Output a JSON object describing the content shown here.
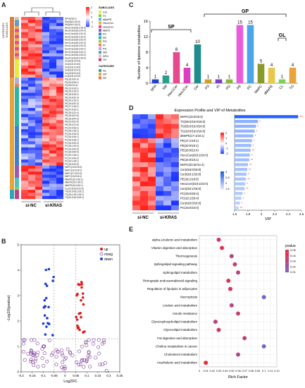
{
  "panels": {
    "A": {
      "letter": "A",
      "category_title": "CATEGORY",
      "subclass_title": "SUBCLASS",
      "col_groups": [
        "si-NC",
        "si-KRAS"
      ],
      "color_scale": [
        "2",
        "1",
        "0",
        "-1",
        "-2"
      ],
      "subclass_legend": [
        {
          "label": "Cer",
          "color": "#e8eb3a"
        },
        {
          "label": "CL",
          "color": "#7ad15a"
        },
        {
          "label": "dMePE",
          "color": "#4fc0c4"
        },
        {
          "label": "Hex1Cer",
          "color": "#f5a54a"
        },
        {
          "label": "Hex2Cer",
          "color": "#e54a8f"
        },
        {
          "label": "MePC",
          "color": "#9b59b6"
        },
        {
          "label": "PC",
          "color": "#3f7fd1"
        },
        {
          "label": "PE",
          "color": "#2ab5a5"
        },
        {
          "label": "PG",
          "color": "#a4c639"
        },
        {
          "label": "PI",
          "color": "#ef7f62"
        },
        {
          "label": "PS",
          "color": "#b0b0e0"
        },
        {
          "label": "SM",
          "color": "#5b9bd5"
        },
        {
          "label": "SPH",
          "color": "#e3c4a8"
        },
        {
          "label": "TG",
          "color": "#c04080"
        }
      ],
      "category_legend": [
        {
          "label": "GL",
          "color": "#2aa6b8"
        },
        {
          "label": "GP",
          "color": "#e8a33a"
        },
        {
          "label": "SP",
          "color": "#e07b39"
        }
      ],
      "row_labels": [
        "SPH(d18:1)",
        "SM(d18:1/24:0)",
        "SM(d18:1/16:0)",
        "Hex1Cer(d18:1/16:0)",
        "Hex2Cer(d18:1/24:0)",
        "Hex1Cer(d18:1/24:0)",
        "Hex2Cer(d18:1/16:0)",
        "Hex2Cer(d18:1/22:0)",
        "Hex1Cer(d18:1/22:0)",
        "Hex1Cer(d18:1/23:0)",
        "Hex2Cer(d18:1/24:1)",
        "Hex1Cer(d18:1/24:1)",
        "Hex1Cer(d18:1/26:0)",
        "Hex2Cer(d18:1/18:0)",
        "Cer(d18:1/24:0)",
        "Cer(d18:1/16:0)",
        "Cer(d18:1/18:0)",
        "Cer(d18:1/24:1)",
        "Cer(d18:0/16:0)",
        "Cer(d18:1/20:0)",
        "PS(18:0/20:4)",
        "PS(18:0/18:1)",
        "PI(18:0/20:4)",
        "PE(16:0/18:1)",
        "PE(18:1/18:1)",
        "PE(18:0/18:1)",
        "PE(16:0/20:4)",
        "PE(16:1/18:1)",
        "PE(18:0/20:4)",
        "PE(17:1/18:1)",
        "PE(20:0/18:1)",
        "PE(18:1/20:4)",
        "PE(18:0/22:6)",
        "PE(18:0/20:3)",
        "PE(16:0/22:6)",
        "PE(18:1/22:6)",
        "PC(16:0/18:1)",
        "PC(18:1/18:1)",
        "PC(16:0/16:0)",
        "PC(16:0/16:1)",
        "PC(18:0/18:1)",
        "PC(16:0/20:4)",
        "PC(18:1/20:4)",
        "PC(16:0/22:6)",
        "PC(18:0/20:4)",
        "PC(20:1/18:1)",
        "PC(14:0/16:0)",
        "PC(16:1/18:1)",
        "PC(18:0/22:6)",
        "MePC(15:0/18:3)",
        "MePC(18:1/18:1)",
        "MePC(17:0/22:4)",
        "MePC(16:0/18:1)",
        "dMePE(16:0/18:1)",
        "dMePE(18:1/18:1)",
        "dMePE(16:0/16:1)",
        "CL(22:6/18:2/22:6)",
        "TG(16:0/18:1/18:1)",
        "TG(18:1/18:1/18:1)",
        "TG(16:0/16:0/18:1)"
      ]
    },
    "B": {
      "letter": "B",
      "xlabel": "Log2FC",
      "ylabel": "-Log10(pvalue)",
      "legend": [
        {
          "label": "up",
          "color": "#e0191b"
        },
        {
          "label": "nosig",
          "color": "#7d3c98"
        },
        {
          "label": "down",
          "color": "#1f3fd6"
        }
      ],
      "x_ticks": [
        "-0.2",
        "-0.15",
        "-0.1",
        "-0.05",
        "0",
        "0.05",
        "0.1",
        "0.15",
        "0.2",
        "0.25"
      ],
      "y_ticks": [
        "0",
        "1",
        "2",
        "3",
        "4",
        "5"
      ]
    },
    "C": {
      "letter": "C",
      "ylabel": "Number of lipidome metabolites",
      "groups": [
        {
          "label": "SP",
          "from": 0,
          "to": 3
        },
        {
          "label": "GP",
          "from": 5,
          "to": 12
        },
        {
          "label": "GL",
          "from": 12,
          "to": 12
        }
      ],
      "y_ticks": [
        "0",
        "4",
        "8",
        "12",
        "16"
      ]
    },
    "D": {
      "letter": "D",
      "title": "Expression Profile and VIP of Metabolites",
      "xlabel": "VIP",
      "col_groups": [
        "si-NC",
        "si-KRAS"
      ],
      "scale1": [
        "2",
        "1",
        "0",
        "-1",
        "-2"
      ],
      "scale2": [
        "3",
        "2.5",
        "2",
        "1.5"
      ],
      "x_ticks": [
        "1.6",
        "1.8",
        "2",
        "2.2",
        "2.4",
        "2.6"
      ]
    },
    "E": {
      "letter": "E",
      "xlabel": "Rich Factor",
      "legend_title": "pvalue",
      "legend_ticks": [
        "0.05",
        "0.04",
        "0.03",
        "0.02",
        "0.01"
      ],
      "x_ticks": [
        "0",
        "0.01",
        "0.02",
        "0.03",
        "0.04",
        "0.05",
        "0.06",
        "0.07",
        "0.08",
        "0.09",
        "0.1",
        "0.11",
        "0.12"
      ]
    }
  },
  "chart_data": [
    {
      "type": "bar",
      "panel": "C",
      "categories": [
        "SPH",
        "SM",
        "Hex1Cer",
        "Hex2Cer",
        "Cer",
        "PS",
        "PI",
        "PG",
        "PE",
        "PC",
        "MePC",
        "dMePE",
        "CL",
        "TG"
      ],
      "values": [
        1,
        2,
        8,
        4,
        10,
        1,
        1,
        1,
        15,
        15,
        5,
        4,
        1,
        4
      ],
      "colors": [
        "#1f3fd6",
        "#2a9d8f",
        "#e54a8f",
        "#d93fbf",
        "#1e8c8c",
        "#c9a227",
        "#7b3fbf",
        "#8ab83a",
        "#e85dd8",
        "#4aa6e8",
        "#8a9a2a",
        "#e8c84a",
        "#7bd15a",
        "#e8a33a"
      ],
      "ylim": [
        0,
        16
      ]
    },
    {
      "type": "bar",
      "panel": "D",
      "categories": [
        "MePC(15:0/18:3)",
        "TG(55:0/16:0/16:0)",
        "TG(55:0/16:0/24:0)",
        "TG(18:0/16:0/16:0)",
        "dMePE(17:1/16:1)",
        "PE(17:1/18:1)",
        "PE(20:0/18:1)",
        "PE(18:0/22:4)",
        "Hex1Cer(d18:1/24:0)",
        "PE(16:0/18:1)",
        "MePC(20:3e/11:4)",
        "Cer(d18:0/18:0)",
        "Cer(d18:1/16:0)",
        "PE(18:1/18:0)",
        "Hex1Cer(d18:1/24:0)",
        "Cer(d18:1/18:0)",
        "PC(26:0/20:4)",
        "PC(16:1/20:4)",
        "Cer(d18:0/16:0)",
        "PC(16:0/24:0)"
      ],
      "values": [
        2.55,
        1.95,
        1.92,
        1.9,
        1.88,
        1.86,
        1.85,
        1.84,
        1.83,
        1.82,
        1.8,
        1.79,
        1.78,
        1.77,
        1.76,
        1.75,
        1.72,
        1.7,
        1.68,
        1.66
      ],
      "significance": [
        "***",
        "*",
        "*",
        "*",
        "*",
        "*",
        "*",
        "**",
        "*",
        "**",
        "**",
        "**",
        "*",
        "**",
        "*",
        "**",
        "*",
        "*",
        "*",
        "**"
      ],
      "xlim": [
        1.6,
        2.6
      ]
    },
    {
      "type": "scatter",
      "panel": "E",
      "categories": [
        "alpha-Linolenic acid metabolism",
        "Vitamin digestion and absorption",
        "Thermogenesis",
        "Sphingolipid signaling pathway",
        "Sphingolipid metabolism",
        "Retrograde endocannabinoid signaling",
        "Regulation of lipolysis in adipocytes",
        "Necroptosis",
        "Linoleic acid metabolism",
        "Insulin resistance",
        "Glycerophospholipid metabolism",
        "Glycerolipid metabolism",
        "Fat digestion and absorption",
        "Choline metabolism in cancer",
        "Cholesterol metabolism",
        "Arachidonic acid metabolism"
      ],
      "x": [
        0.03,
        0.035,
        0.05,
        0.055,
        0.06,
        0.045,
        0.048,
        0.1,
        0.05,
        0.06,
        0.025,
        0.03,
        0.07,
        0.1,
        0.06,
        0.01
      ],
      "pvalue": [
        0.04,
        0.045,
        0.03,
        0.035,
        0.03,
        0.04,
        0.04,
        0.01,
        0.03,
        0.035,
        0.03,
        0.04,
        0.035,
        0.01,
        0.03,
        0.05
      ],
      "xlim": [
        0,
        0.12
      ]
    },
    {
      "type": "scatter",
      "panel": "B",
      "xlim": [
        -0.2,
        0.25
      ],
      "ylim": [
        0,
        5
      ]
    }
  ]
}
